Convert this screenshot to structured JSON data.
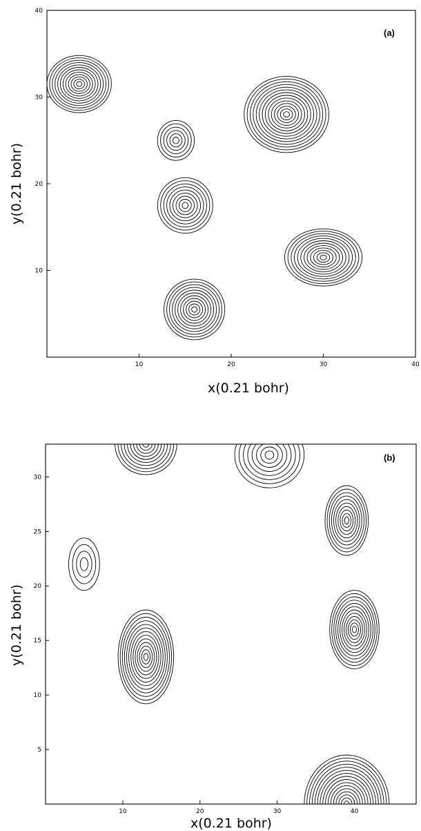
{
  "chart_data": [
    {
      "type": "contour",
      "panel_label": "(a)",
      "xlabel": "x(0.21 bohr)",
      "ylabel": "y(0.21 bohr)",
      "xlim": [
        0,
        40
      ],
      "ylim": [
        0,
        40
      ],
      "xticks": [
        10,
        20,
        30,
        40
      ],
      "yticks": [
        10,
        20,
        30,
        40
      ],
      "peaks": [
        {
          "x": 3.5,
          "y": 31.5,
          "sx": 3.5,
          "sy": 3.3,
          "rings": 12
        },
        {
          "x": 26,
          "y": 28,
          "sx": 4.6,
          "sy": 4.4,
          "rings": 14
        },
        {
          "x": 14,
          "y": 25,
          "sx": 2.0,
          "sy": 2.3,
          "rings": 6
        },
        {
          "x": 15,
          "y": 17.5,
          "sx": 3.0,
          "sy": 3.2,
          "rings": 9
        },
        {
          "x": 30,
          "y": 11.5,
          "sx": 4.2,
          "sy": 3.3,
          "rings": 12
        },
        {
          "x": 16,
          "y": 5.5,
          "sx": 3.3,
          "sy": 3.5,
          "rings": 11
        }
      ]
    },
    {
      "type": "contour",
      "panel_label": "(b)",
      "xlabel": "x(0.21 bohr)",
      "ylabel": "y(0.21 bohr)",
      "xlim": [
        0,
        48
      ],
      "ylim": [
        0,
        33
      ],
      "xticks": [
        10,
        20,
        30,
        40
      ],
      "yticks": [
        5,
        10,
        15,
        20,
        25,
        30
      ],
      "peaks": [
        {
          "x": 13,
          "y": 13.5,
          "sx": 3.6,
          "sy": 4.3,
          "rings": 13
        },
        {
          "x": 40,
          "y": 16,
          "sx": 3.2,
          "sy": 3.6,
          "rings": 12
        },
        {
          "x": 39,
          "y": 26,
          "sx": 2.8,
          "sy": 3.2,
          "rings": 10
        },
        {
          "x": 13,
          "y": 33,
          "sx": 4.0,
          "sy": 2.8,
          "rings": 10
        },
        {
          "x": 29,
          "y": 32,
          "sx": 4.5,
          "sy": 3.0,
          "rings": 8
        },
        {
          "x": 39,
          "y": 0,
          "sx": 5.5,
          "sy": 4.5,
          "rings": 16
        },
        {
          "x": 5,
          "y": 22,
          "sx": 2.0,
          "sy": 2.4,
          "rings": 4
        }
      ]
    }
  ]
}
